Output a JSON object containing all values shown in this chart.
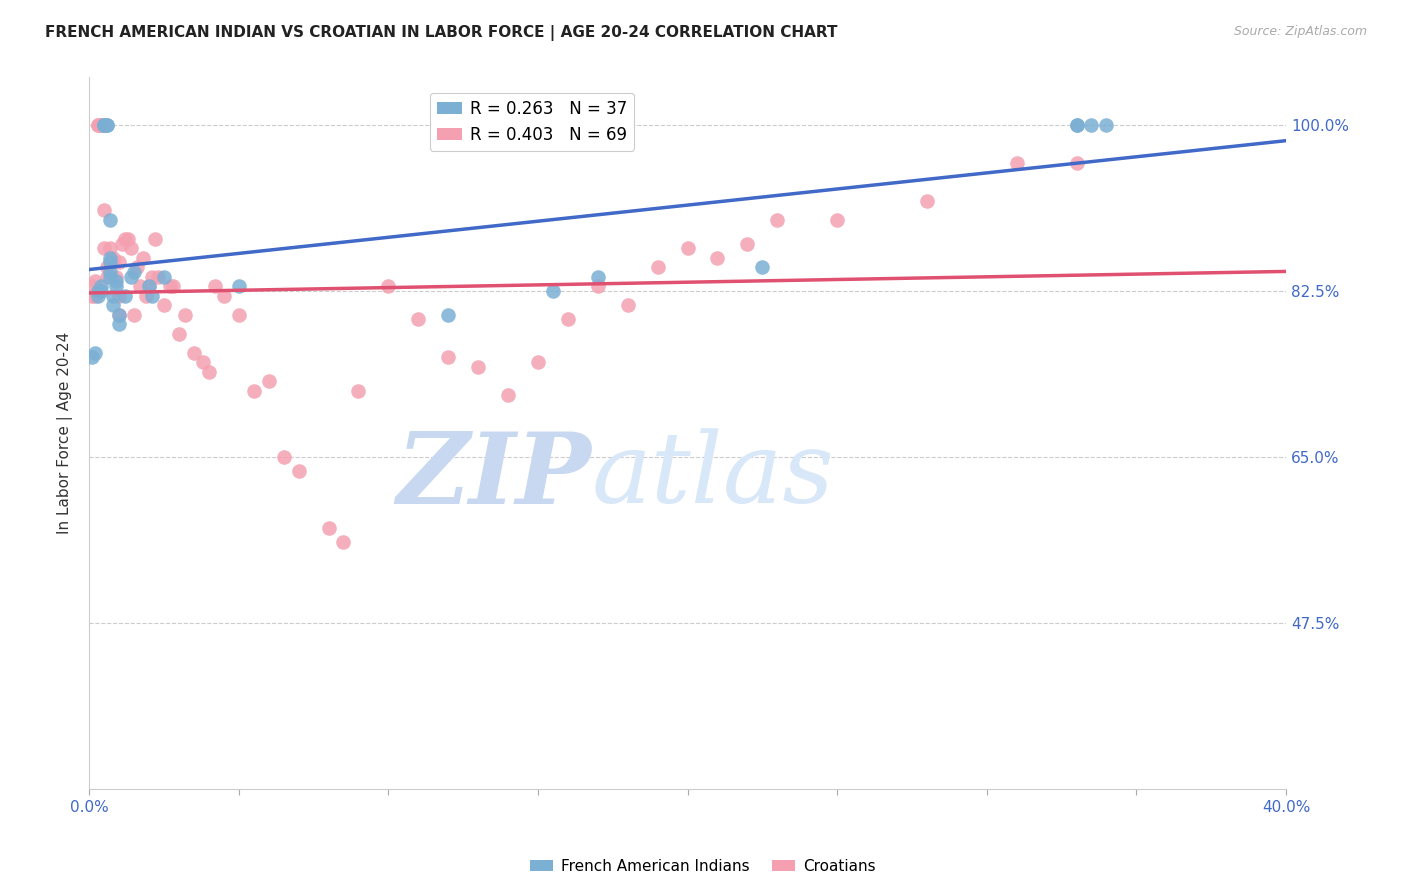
{
  "title": "FRENCH AMERICAN INDIAN VS CROATIAN IN LABOR FORCE | AGE 20-24 CORRELATION CHART",
  "source": "Source: ZipAtlas.com",
  "ylabel": "In Labor Force | Age 20-24",
  "xlim": [
    0.0,
    0.4
  ],
  "ylim": [
    0.3,
    1.05
  ],
  "ytick_positions": [
    1.0,
    0.825,
    0.65,
    0.475
  ],
  "ytick_labels": [
    "100.0%",
    "82.5%",
    "65.0%",
    "47.5%"
  ],
  "right_ytick_extra": 0.4,
  "grid_color": "#cccccc",
  "background_color": "#ffffff",
  "blue_color": "#7bafd4",
  "pink_color": "#f4a0b0",
  "blue_line_color": "#4169c8",
  "pink_line_color": "#e05070",
  "legend_blue_R": "R = 0.263",
  "legend_blue_N": "N = 37",
  "legend_pink_R": "R = 0.403",
  "legend_pink_N": "N = 69",
  "watermark_zip": "ZIP",
  "watermark_atlas": "atlas",
  "watermark_color": "#c8d8f0",
  "blue_x": [
    0.001,
    0.002,
    0.003,
    0.003,
    0.004,
    0.004,
    0.005,
    0.005,
    0.005,
    0.006,
    0.006,
    0.007,
    0.007,
    0.007,
    0.007,
    0.007,
    0.008,
    0.008,
    0.009,
    0.009,
    0.01,
    0.01,
    0.012,
    0.014,
    0.015,
    0.02,
    0.021,
    0.025,
    0.05,
    0.12,
    0.155,
    0.17,
    0.225,
    0.33,
    0.33,
    0.335,
    0.34
  ],
  "blue_y": [
    0.755,
    0.76,
    0.82,
    0.825,
    0.825,
    0.83,
    1.0,
    1.0,
    1.0,
    1.0,
    1.0,
    0.9,
    0.86,
    0.855,
    0.845,
    0.84,
    0.82,
    0.81,
    0.83,
    0.835,
    0.79,
    0.8,
    0.82,
    0.84,
    0.845,
    0.83,
    0.82,
    0.84,
    0.83,
    0.8,
    0.825,
    0.84,
    0.85,
    1.0,
    1.0,
    1.0,
    1.0
  ],
  "pink_x": [
    0.001,
    0.001,
    0.002,
    0.002,
    0.003,
    0.003,
    0.004,
    0.004,
    0.005,
    0.005,
    0.006,
    0.006,
    0.007,
    0.007,
    0.008,
    0.008,
    0.009,
    0.01,
    0.01,
    0.01,
    0.011,
    0.012,
    0.013,
    0.014,
    0.015,
    0.016,
    0.017,
    0.018,
    0.019,
    0.02,
    0.021,
    0.022,
    0.023,
    0.025,
    0.027,
    0.028,
    0.03,
    0.032,
    0.035,
    0.038,
    0.04,
    0.042,
    0.045,
    0.05,
    0.055,
    0.06,
    0.065,
    0.07,
    0.08,
    0.085,
    0.09,
    0.1,
    0.11,
    0.12,
    0.13,
    0.14,
    0.15,
    0.16,
    0.17,
    0.18,
    0.19,
    0.2,
    0.21,
    0.22,
    0.23,
    0.25,
    0.28,
    0.31,
    0.33
  ],
  "pink_y": [
    0.82,
    0.83,
    0.82,
    0.835,
    1.0,
    1.0,
    1.0,
    1.0,
    0.91,
    0.87,
    0.84,
    0.85,
    0.855,
    0.87,
    0.855,
    0.86,
    0.84,
    0.855,
    0.8,
    0.82,
    0.875,
    0.88,
    0.88,
    0.87,
    0.8,
    0.85,
    0.83,
    0.86,
    0.82,
    0.83,
    0.84,
    0.88,
    0.84,
    0.81,
    0.83,
    0.83,
    0.78,
    0.8,
    0.76,
    0.75,
    0.74,
    0.83,
    0.82,
    0.8,
    0.72,
    0.73,
    0.65,
    0.635,
    0.575,
    0.56,
    0.72,
    0.83,
    0.795,
    0.755,
    0.745,
    0.715,
    0.75,
    0.795,
    0.83,
    0.81,
    0.85,
    0.87,
    0.86,
    0.875,
    0.9,
    0.9,
    0.92,
    0.96,
    0.96
  ]
}
